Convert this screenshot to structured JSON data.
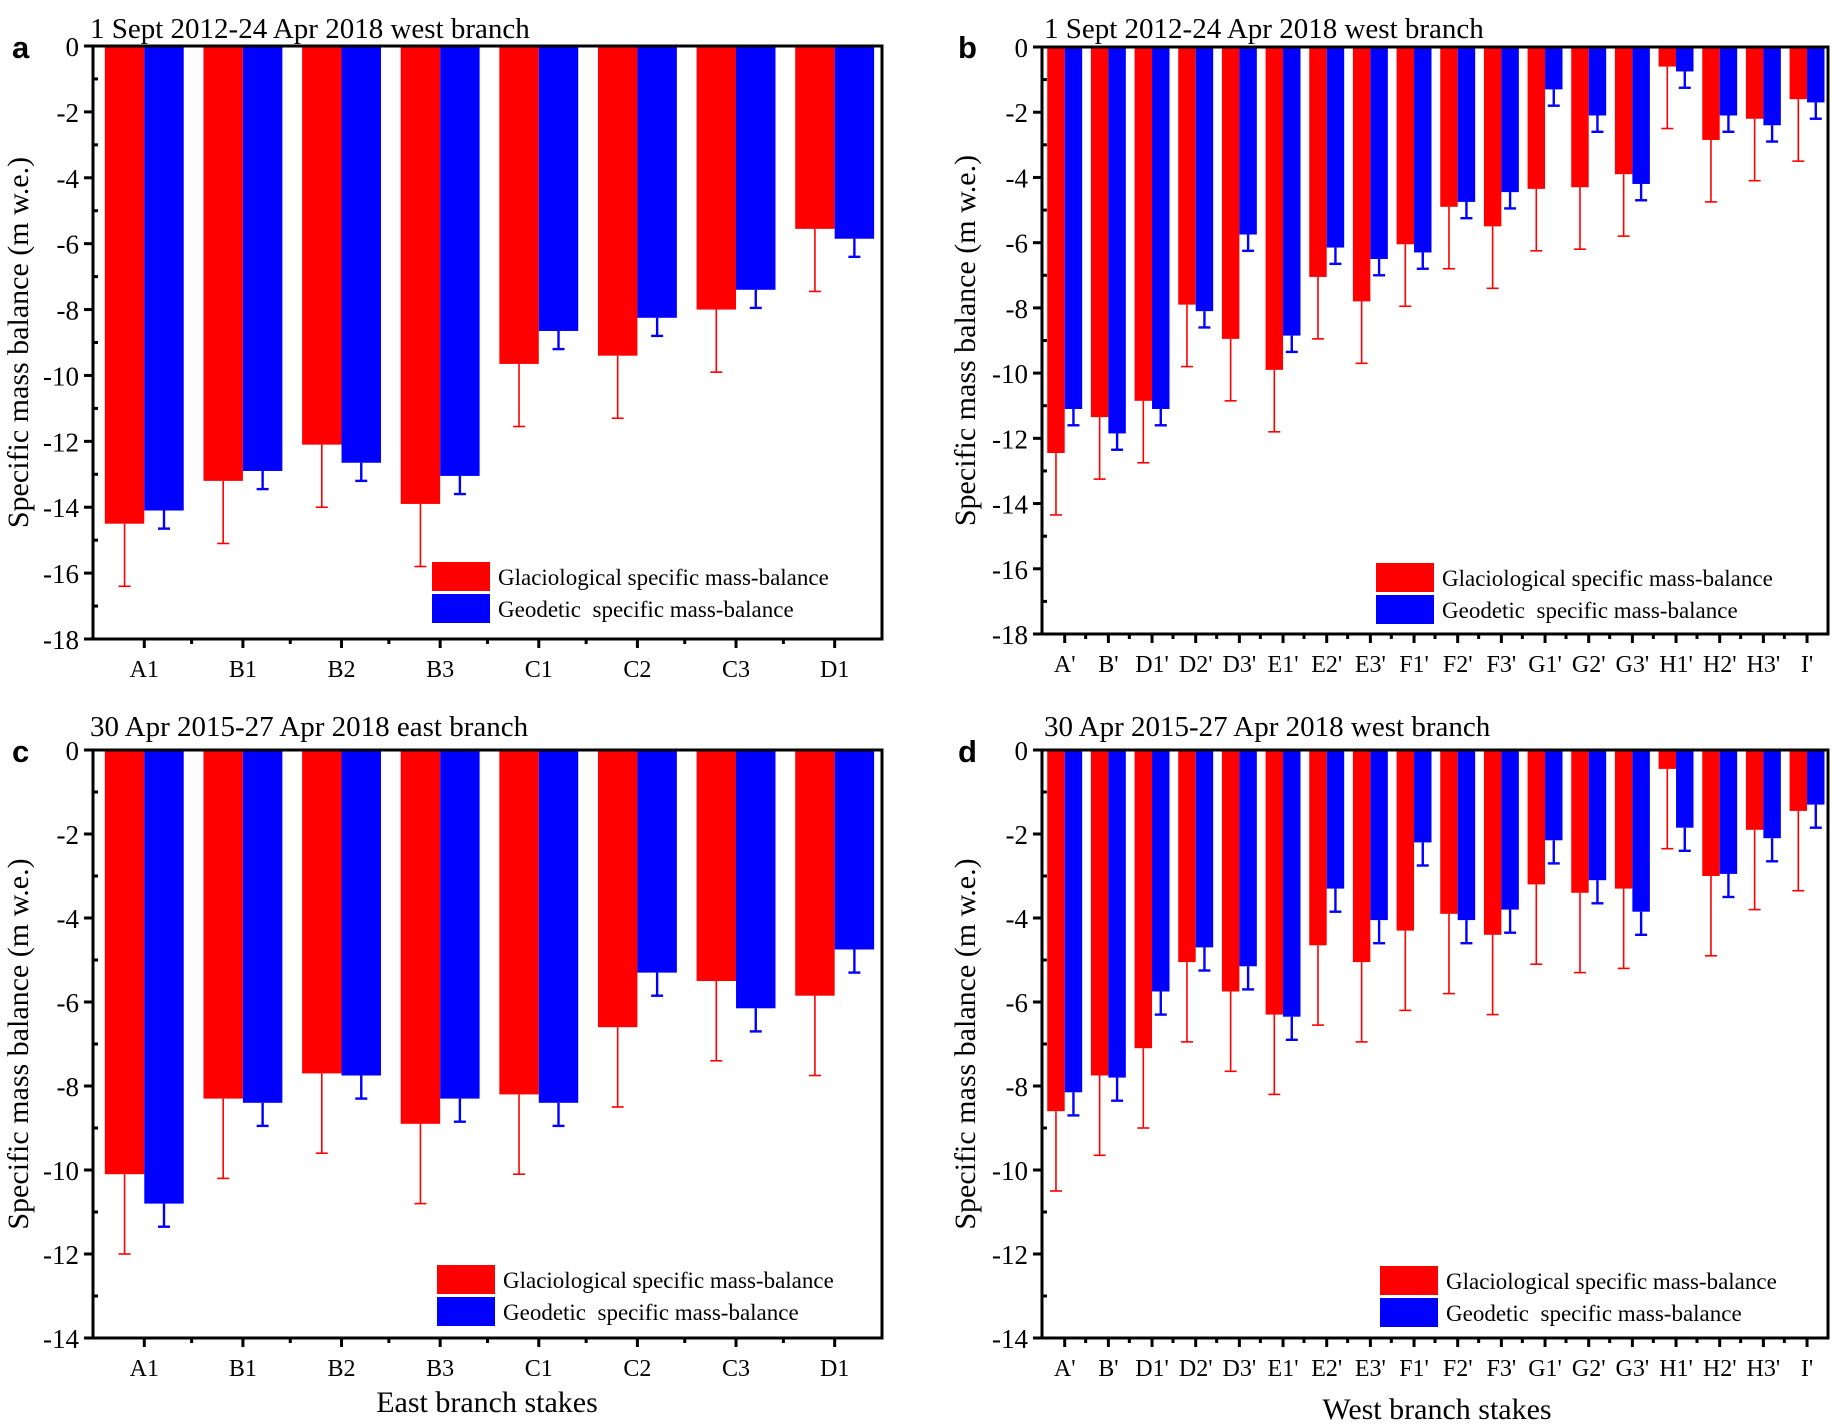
{
  "colors": {
    "glaciological": "#ff0000",
    "geodetic": "#0000ff",
    "axis": "#000000"
  },
  "legend": {
    "glaciological_label": "Glaciological specific mass-balance",
    "geodetic_label": "Geodetic  specific mass-balance"
  },
  "chart_data": [
    {
      "panel": "a",
      "type": "bar",
      "title": "1 Sept 2012-24 Apr 2018 west branch",
      "xlabel": "",
      "ylabel": "Specific mass balance (m w.e.)",
      "ylim": [
        -18,
        0
      ],
      "yticks": [
        0,
        -2,
        -4,
        -6,
        -8,
        -10,
        -12,
        -14,
        -16,
        -18
      ],
      "legend_position": "bottom-right",
      "categories": [
        "A1",
        "B1",
        "B2",
        "B3",
        "C1",
        "C2",
        "C3",
        "D1"
      ],
      "series": [
        {
          "name": "Glaciological specific mass-balance",
          "values": [
            -14.5,
            -13.2,
            -12.1,
            -13.9,
            -9.65,
            -9.4,
            -8.0,
            -5.55
          ],
          "error": [
            1.9,
            1.9,
            1.9,
            1.9,
            1.9,
            1.9,
            1.9,
            1.9
          ]
        },
        {
          "name": "Geodetic  specific mass-balance",
          "values": [
            -14.1,
            -12.9,
            -12.65,
            -13.05,
            -8.65,
            -8.25,
            -7.4,
            -5.85
          ],
          "error": [
            0.55,
            0.55,
            0.55,
            0.55,
            0.55,
            0.55,
            0.55,
            0.55
          ]
        }
      ]
    },
    {
      "panel": "b",
      "type": "bar",
      "title": "1 Sept 2012-24 Apr 2018 west branch",
      "xlabel": "",
      "ylabel": "Specific mass balance (m w.e.)",
      "ylim": [
        -18,
        0
      ],
      "yticks": [
        0,
        -2,
        -4,
        -6,
        -8,
        -10,
        -12,
        -14,
        -16,
        -18
      ],
      "legend_position": "bottom-right",
      "categories": [
        "A'",
        "B'",
        "D1'",
        "D2'",
        "D3'",
        "E1'",
        "E2'",
        "E3'",
        "F1'",
        "F2'",
        "F3'",
        "G1'",
        "G2'",
        "G3'",
        "H1'",
        "H2'",
        "H3'",
        "I'"
      ],
      "series": [
        {
          "name": "Glaciological specific mass-balance",
          "values": [
            -12.45,
            -11.35,
            -10.85,
            -7.9,
            -8.95,
            -9.9,
            -7.05,
            -7.8,
            -6.05,
            -4.9,
            -5.5,
            -4.35,
            -4.3,
            -3.9,
            -0.6,
            -2.85,
            -2.2,
            -1.6
          ],
          "error": [
            1.9,
            1.9,
            1.9,
            1.9,
            1.9,
            1.9,
            1.9,
            1.9,
            1.9,
            1.9,
            1.9,
            1.9,
            1.9,
            1.9,
            1.9,
            1.9,
            1.9,
            1.9
          ]
        },
        {
          "name": "Geodetic  specific mass-balance",
          "values": [
            -11.1,
            -11.85,
            -11.1,
            -8.1,
            -5.75,
            -8.85,
            -6.15,
            -6.5,
            -6.3,
            -4.75,
            -4.45,
            -1.3,
            -2.1,
            -4.2,
            -0.75,
            -2.1,
            -2.4,
            -1.7
          ],
          "error": [
            0.5,
            0.5,
            0.5,
            0.5,
            0.5,
            0.5,
            0.5,
            0.5,
            0.5,
            0.5,
            0.5,
            0.5,
            0.5,
            0.5,
            0.5,
            0.5,
            0.5,
            0.5
          ]
        }
      ]
    },
    {
      "panel": "c",
      "type": "bar",
      "title": "30 Apr 2015-27 Apr 2018 east branch",
      "xlabel": "East branch stakes",
      "ylabel": "Specific mass balance (m w.e.)",
      "ylim": [
        -14,
        0
      ],
      "yticks": [
        0,
        -2,
        -4,
        -6,
        -8,
        -10,
        -12,
        -14
      ],
      "legend_position": "bottom-right",
      "categories": [
        "A1",
        "B1",
        "B2",
        "B3",
        "C1",
        "C2",
        "C3",
        "D1"
      ],
      "series": [
        {
          "name": "Glaciological specific mass-balance",
          "values": [
            -10.1,
            -8.3,
            -7.7,
            -8.9,
            -8.2,
            -6.6,
            -5.5,
            -5.85
          ],
          "error": [
            1.9,
            1.9,
            1.9,
            1.9,
            1.9,
            1.9,
            1.9,
            1.9
          ]
        },
        {
          "name": "Geodetic  specific mass-balance",
          "values": [
            -10.8,
            -8.4,
            -7.75,
            -8.3,
            -8.4,
            -5.3,
            -6.15,
            -4.75
          ],
          "error": [
            0.55,
            0.55,
            0.55,
            0.55,
            0.55,
            0.55,
            0.55,
            0.55
          ]
        }
      ]
    },
    {
      "panel": "d",
      "type": "bar",
      "title": "30 Apr 2015-27 Apr 2018 west branch",
      "xlabel": "West branch stakes",
      "ylabel": "Specific mass balance (m w.e.)",
      "ylim": [
        -14,
        0
      ],
      "yticks": [
        0,
        -2,
        -4,
        -6,
        -8,
        -10,
        -12,
        -14
      ],
      "legend_position": "bottom-right",
      "categories": [
        "A'",
        "B'",
        "D1'",
        "D2'",
        "D3'",
        "E1'",
        "E2'",
        "E3'",
        "F1'",
        "F2'",
        "F3'",
        "G1'",
        "G2'",
        "G3'",
        "H1'",
        "H2'",
        "H3'",
        "I'"
      ],
      "series": [
        {
          "name": "Glaciological specific mass-balance",
          "values": [
            -8.6,
            -7.75,
            -7.1,
            -5.05,
            -5.75,
            -6.3,
            -4.65,
            -5.05,
            -4.3,
            -3.9,
            -4.4,
            -3.2,
            -3.4,
            -3.3,
            -0.45,
            -3.0,
            -1.9,
            -1.45
          ],
          "error": [
            1.9,
            1.9,
            1.9,
            1.9,
            1.9,
            1.9,
            1.9,
            1.9,
            1.9,
            1.9,
            1.9,
            1.9,
            1.9,
            1.9,
            1.9,
            1.9,
            1.9,
            1.9
          ]
        },
        {
          "name": "Geodetic  specific mass-balance",
          "values": [
            -8.15,
            -7.8,
            -5.75,
            -4.7,
            -5.15,
            -6.35,
            -3.3,
            -4.05,
            -2.2,
            -4.05,
            -3.8,
            -2.15,
            -3.1,
            -3.85,
            -1.85,
            -2.95,
            -2.1,
            -1.3
          ],
          "error": [
            0.55,
            0.55,
            0.55,
            0.55,
            0.55,
            0.55,
            0.55,
            0.55,
            0.55,
            0.55,
            0.55,
            0.55,
            0.55,
            0.55,
            0.55,
            0.55,
            0.55,
            0.55
          ]
        }
      ]
    }
  ]
}
